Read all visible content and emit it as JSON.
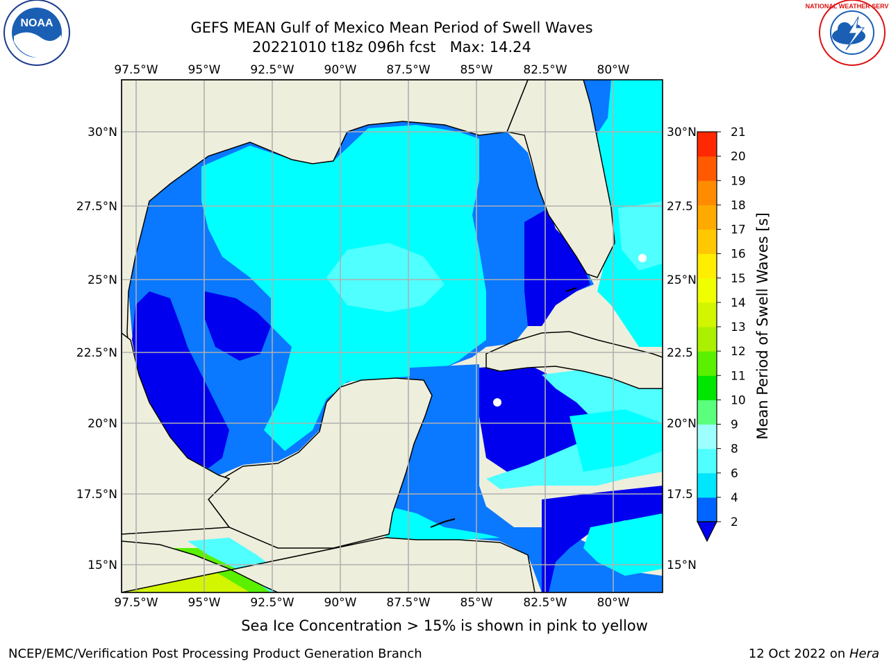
{
  "title": {
    "line1": "GEFS MEAN Gulf of Mexico Mean Period of Swell Waves",
    "line2": "20221010 t18z 096h fcst   Max: 14.24"
  },
  "logos": {
    "left": "noaa-logo",
    "right": "national-weather-service-logo",
    "left_text": "NOAA",
    "right_text": "NATIONAL WEATHER SERVICE"
  },
  "axes": {
    "lon_labels": [
      "97.5°W",
      "95°W",
      "92.5°W",
      "90°W",
      "87.5°W",
      "85°W",
      "82.5°W",
      "80°W"
    ],
    "lat_labels_left": [
      "30°N",
      "27.5°N",
      "25°N",
      "22.5°N",
      "20°N",
      "17.5°N",
      "15°N"
    ],
    "lat_labels_right": [
      "30°N",
      "27.5",
      "25°N",
      "22.5",
      "20°N",
      "17.5",
      "15°N"
    ]
  },
  "colorbar": {
    "label": "Mean Period of Swell Waves [s]",
    "ticks": [
      "2",
      "4",
      "6",
      "8",
      "9",
      "10",
      "11",
      "12",
      "13",
      "14",
      "15",
      "16",
      "17",
      "18",
      "19",
      "20",
      "21"
    ],
    "colors": [
      "#0064ff",
      "#00e6ff",
      "#50ffff",
      "#9effff",
      "#5aff7d",
      "#00e600",
      "#5af000",
      "#aaf000",
      "#d2f500",
      "#f0ff00",
      "#ffee00",
      "#ffc800",
      "#ffaa00",
      "#ff8c00",
      "#ff5a00",
      "#ff2800",
      "#ff0000"
    ],
    "under_color": "#0000ee"
  },
  "map": {
    "land_color": "#eeeedc",
    "ocean_dark": "#0000ee",
    "ocean_mid": "#0a78ff",
    "ocean_cyan": "#00ffff",
    "ocean_light": "#50ffff",
    "grid_color": "#b0b0b0"
  },
  "footnote": "Sea Ice Concentration > 15% is shown in pink to yellow",
  "credit_left": "NCEP/EMC/Verification Post Processing Product Generation Branch",
  "credit_right_date": "12 Oct 2022 on ",
  "credit_right_host": "Hera"
}
